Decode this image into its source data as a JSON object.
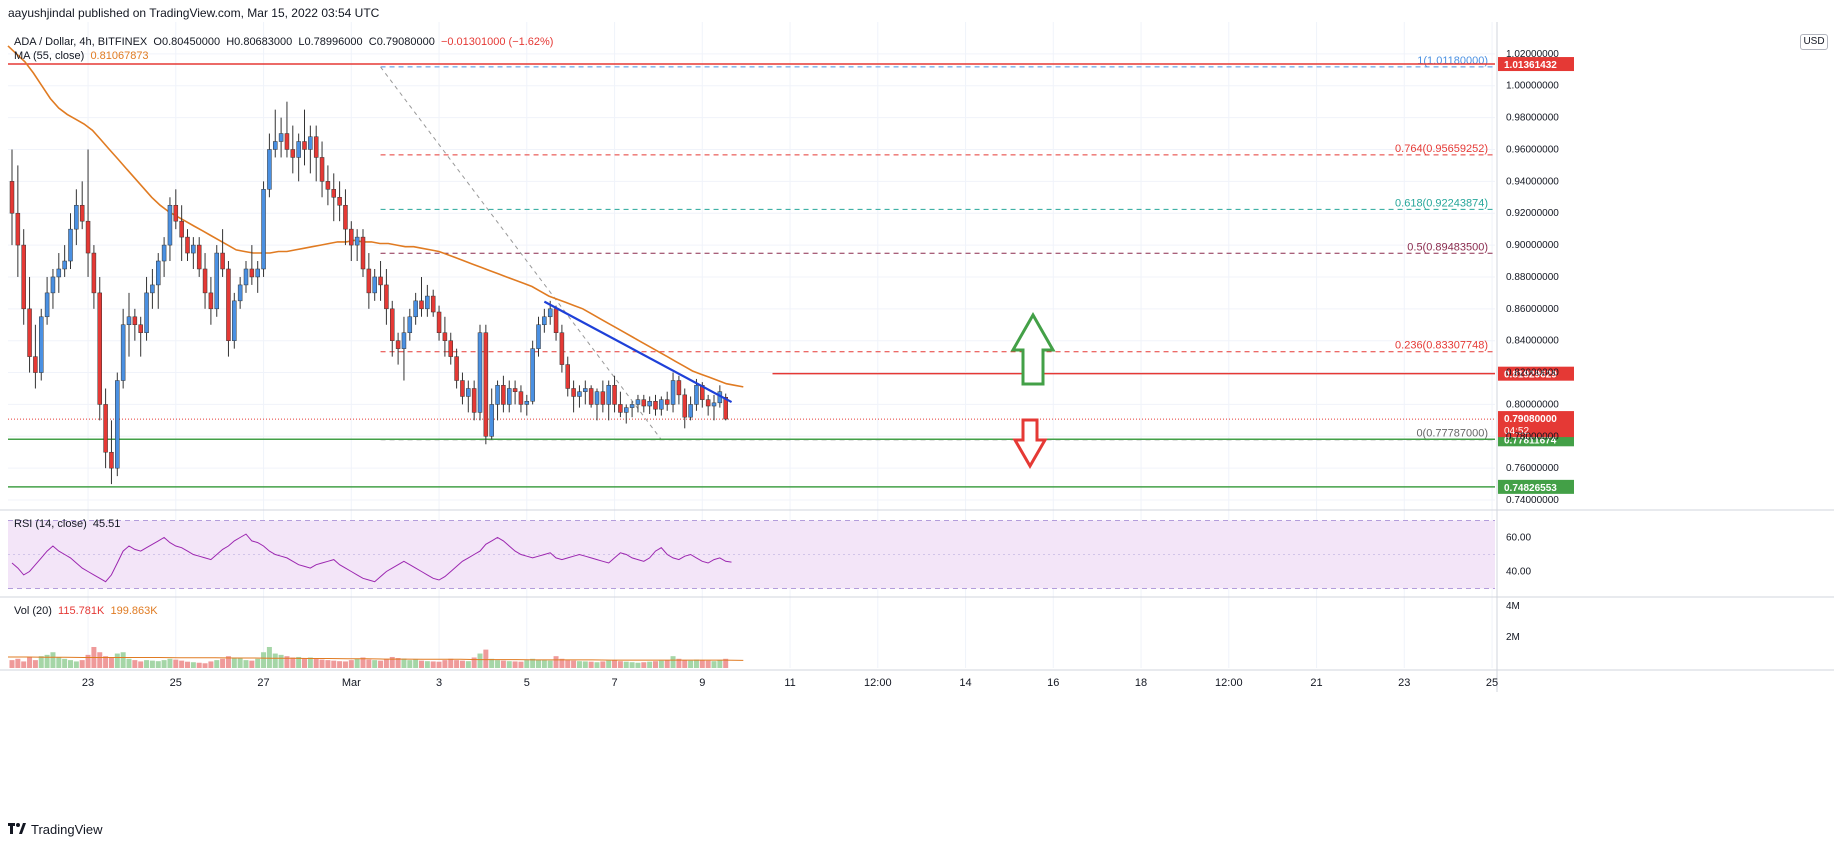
{
  "header": {
    "publish_line": "aayushjindal published on TradingView.com, Mar 15, 2022 03:54 UTC"
  },
  "legend": {
    "symbol": "ADA / Dollar, 4h, BITFINEX",
    "open": "O0.80450000",
    "high": "H0.80683000",
    "low": "L0.78996000",
    "close": "C0.79080000",
    "change": "−0.01301000 (−1.62%)",
    "ma_label": "MA (55, close)",
    "ma_value": "0.81067873",
    "rsi_label": "RSI (14, close)",
    "rsi_value": "45.51",
    "vol_label": "Vol (20)",
    "vol_value1": "115.781K",
    "vol_value2": "199.863K"
  },
  "currency_badge": "USD",
  "brand": {
    "name": "TradingView",
    "logo": "tradingview-logo-icon"
  },
  "colors": {
    "up": "#4a90e2",
    "down": "#e53935",
    "ma": "#e07b22",
    "rsi_line": "#9c27b0",
    "rsi_fill": "#f3e5f8",
    "support": "#43a047",
    "resistance": "#e53935",
    "trendline": "#1e40d8",
    "arrow_up": "#43a047",
    "arrow_down": "#e53935",
    "fib_red": "#e53935",
    "fib_teal": "#26a69a",
    "fib_brown": "#8b2c4e"
  },
  "chart_data": {
    "type": "candlestick",
    "ylim": [
      0.735,
      1.04
    ],
    "price_axis_labels": [
      "1.02000000",
      "1.00000000",
      "0.98000000",
      "0.96000000",
      "0.94000000",
      "0.92000000",
      "0.90000000",
      "0.88000000",
      "0.86000000",
      "0.84000000",
      "0.82000000",
      "0.80000000",
      "0.78000000",
      "0.76000000",
      "0.74000000"
    ],
    "price_axis_values": [
      1.02,
      1.0,
      0.98,
      0.96,
      0.94,
      0.92,
      0.9,
      0.88,
      0.86,
      0.84,
      0.82,
      0.8,
      0.78,
      0.76,
      0.74
    ],
    "x_labels": [
      "23",
      "25",
      "27",
      "Mar",
      "3",
      "5",
      "7",
      "9",
      "11",
      "12:00",
      "14",
      "16",
      "18",
      "12:00",
      "21",
      "23",
      "25"
    ],
    "x_label_slots": [
      13,
      28,
      43,
      58,
      73,
      88,
      103,
      118,
      133,
      148,
      163,
      178,
      193,
      208,
      223,
      238,
      253
    ],
    "candles": [
      [
        0.94,
        0.96,
        0.9,
        0.92
      ],
      [
        0.92,
        0.95,
        0.88,
        0.9
      ],
      [
        0.9,
        0.91,
        0.85,
        0.86
      ],
      [
        0.86,
        0.88,
        0.82,
        0.83
      ],
      [
        0.83,
        0.85,
        0.81,
        0.82
      ],
      [
        0.82,
        0.86,
        0.815,
        0.855
      ],
      [
        0.855,
        0.88,
        0.85,
        0.87
      ],
      [
        0.87,
        0.885,
        0.86,
        0.88
      ],
      [
        0.88,
        0.895,
        0.87,
        0.885
      ],
      [
        0.885,
        0.9,
        0.88,
        0.89
      ],
      [
        0.89,
        0.92,
        0.885,
        0.91
      ],
      [
        0.91,
        0.935,
        0.9,
        0.925
      ],
      [
        0.925,
        0.94,
        0.91,
        0.915
      ],
      [
        0.915,
        0.96,
        0.88,
        0.895
      ],
      [
        0.895,
        0.9,
        0.86,
        0.87
      ],
      [
        0.87,
        0.88,
        0.79,
        0.8
      ],
      [
        0.8,
        0.81,
        0.76,
        0.77
      ],
      [
        0.77,
        0.79,
        0.75,
        0.76
      ],
      [
        0.76,
        0.82,
        0.755,
        0.815
      ],
      [
        0.815,
        0.86,
        0.81,
        0.85
      ],
      [
        0.85,
        0.87,
        0.83,
        0.855
      ],
      [
        0.855,
        0.86,
        0.84,
        0.85
      ],
      [
        0.85,
        0.855,
        0.83,
        0.845
      ],
      [
        0.845,
        0.88,
        0.84,
        0.87
      ],
      [
        0.87,
        0.885,
        0.86,
        0.875
      ],
      [
        0.875,
        0.895,
        0.86,
        0.89
      ],
      [
        0.89,
        0.905,
        0.88,
        0.9
      ],
      [
        0.9,
        0.93,
        0.89,
        0.925
      ],
      [
        0.925,
        0.935,
        0.91,
        0.915
      ],
      [
        0.915,
        0.925,
        0.89,
        0.905
      ],
      [
        0.905,
        0.91,
        0.89,
        0.895
      ],
      [
        0.895,
        0.905,
        0.885,
        0.9
      ],
      [
        0.9,
        0.905,
        0.88,
        0.885
      ],
      [
        0.885,
        0.895,
        0.86,
        0.87
      ],
      [
        0.87,
        0.88,
        0.85,
        0.86
      ],
      [
        0.86,
        0.9,
        0.855,
        0.895
      ],
      [
        0.895,
        0.91,
        0.88,
        0.885
      ],
      [
        0.885,
        0.89,
        0.83,
        0.84
      ],
      [
        0.84,
        0.87,
        0.835,
        0.865
      ],
      [
        0.865,
        0.88,
        0.86,
        0.875
      ],
      [
        0.875,
        0.89,
        0.87,
        0.885
      ],
      [
        0.885,
        0.9,
        0.875,
        0.88
      ],
      [
        0.88,
        0.89,
        0.87,
        0.885
      ],
      [
        0.885,
        0.94,
        0.88,
        0.935
      ],
      [
        0.935,
        0.97,
        0.93,
        0.96
      ],
      [
        0.96,
        0.985,
        0.955,
        0.965
      ],
      [
        0.965,
        0.98,
        0.955,
        0.97
      ],
      [
        0.97,
        0.99,
        0.955,
        0.96
      ],
      [
        0.96,
        0.975,
        0.945,
        0.955
      ],
      [
        0.955,
        0.97,
        0.94,
        0.965
      ],
      [
        0.965,
        0.985,
        0.95,
        0.96
      ],
      [
        0.96,
        0.975,
        0.945,
        0.968
      ],
      [
        0.968,
        0.975,
        0.94,
        0.955
      ],
      [
        0.955,
        0.965,
        0.93,
        0.94
      ],
      [
        0.94,
        0.95,
        0.925,
        0.935
      ],
      [
        0.935,
        0.945,
        0.915,
        0.93
      ],
      [
        0.93,
        0.94,
        0.915,
        0.925
      ],
      [
        0.925,
        0.935,
        0.9,
        0.91
      ],
      [
        0.91,
        0.915,
        0.89,
        0.9
      ],
      [
        0.9,
        0.91,
        0.89,
        0.905
      ],
      [
        0.905,
        0.91,
        0.88,
        0.885
      ],
      [
        0.885,
        0.895,
        0.86,
        0.87
      ],
      [
        0.87,
        0.885,
        0.865,
        0.88
      ],
      [
        0.88,
        0.89,
        0.865,
        0.875
      ],
      [
        0.875,
        0.885,
        0.85,
        0.86
      ],
      [
        0.86,
        0.865,
        0.83,
        0.84
      ],
      [
        0.84,
        0.845,
        0.825,
        0.835
      ],
      [
        0.835,
        0.855,
        0.815,
        0.845
      ],
      [
        0.845,
        0.86,
        0.84,
        0.855
      ],
      [
        0.855,
        0.87,
        0.85,
        0.865
      ],
      [
        0.865,
        0.88,
        0.855,
        0.86
      ],
      [
        0.86,
        0.875,
        0.855,
        0.868
      ],
      [
        0.868,
        0.872,
        0.855,
        0.858
      ],
      [
        0.858,
        0.862,
        0.84,
        0.845
      ],
      [
        0.845,
        0.855,
        0.83,
        0.84
      ],
      [
        0.84,
        0.845,
        0.825,
        0.83
      ],
      [
        0.83,
        0.835,
        0.81,
        0.815
      ],
      [
        0.815,
        0.82,
        0.8,
        0.805
      ],
      [
        0.805,
        0.815,
        0.795,
        0.81
      ],
      [
        0.81,
        0.815,
        0.79,
        0.795
      ],
      [
        0.795,
        0.85,
        0.79,
        0.845
      ],
      [
        0.845,
        0.85,
        0.775,
        0.78
      ],
      [
        0.78,
        0.81,
        0.778,
        0.8
      ],
      [
        0.8,
        0.815,
        0.79,
        0.812
      ],
      [
        0.812,
        0.818,
        0.795,
        0.8
      ],
      [
        0.8,
        0.815,
        0.795,
        0.81
      ],
      [
        0.81,
        0.815,
        0.8,
        0.808
      ],
      [
        0.808,
        0.812,
        0.795,
        0.8
      ],
      [
        0.8,
        0.806,
        0.793,
        0.802
      ],
      [
        0.802,
        0.84,
        0.8,
        0.835
      ],
      [
        0.835,
        0.855,
        0.83,
        0.85
      ],
      [
        0.85,
        0.86,
        0.845,
        0.855
      ],
      [
        0.855,
        0.865,
        0.85,
        0.86
      ],
      [
        0.86,
        0.862,
        0.84,
        0.845
      ],
      [
        0.845,
        0.85,
        0.82,
        0.825
      ],
      [
        0.825,
        0.83,
        0.805,
        0.81
      ],
      [
        0.81,
        0.815,
        0.795,
        0.805
      ],
      [
        0.805,
        0.812,
        0.798,
        0.808
      ],
      [
        0.808,
        0.815,
        0.8,
        0.81
      ],
      [
        0.81,
        0.812,
        0.798,
        0.8
      ],
      [
        0.8,
        0.81,
        0.79,
        0.808
      ],
      [
        0.808,
        0.815,
        0.795,
        0.8
      ],
      [
        0.8,
        0.815,
        0.79,
        0.812
      ],
      [
        0.812,
        0.818,
        0.795,
        0.8
      ],
      [
        0.8,
        0.808,
        0.792,
        0.795
      ],
      [
        0.795,
        0.8,
        0.788,
        0.798
      ],
      [
        0.798,
        0.802,
        0.792,
        0.8
      ],
      [
        0.8,
        0.806,
        0.795,
        0.803
      ],
      [
        0.803,
        0.806,
        0.795,
        0.799
      ],
      [
        0.799,
        0.805,
        0.794,
        0.802
      ],
      [
        0.802,
        0.806,
        0.793,
        0.797
      ],
      [
        0.797,
        0.805,
        0.793,
        0.803
      ],
      [
        0.803,
        0.808,
        0.796,
        0.8
      ],
      [
        0.8,
        0.82,
        0.795,
        0.815
      ],
      [
        0.815,
        0.818,
        0.8,
        0.806
      ],
      [
        0.806,
        0.81,
        0.785,
        0.792
      ],
      [
        0.792,
        0.805,
        0.79,
        0.8
      ],
      [
        0.8,
        0.816,
        0.796,
        0.812
      ],
      [
        0.812,
        0.814,
        0.798,
        0.803
      ],
      [
        0.803,
        0.806,
        0.793,
        0.799
      ],
      [
        0.799,
        0.806,
        0.79,
        0.801
      ],
      [
        0.801,
        0.812,
        0.798,
        0.808
      ],
      [
        0.8045,
        0.8068,
        0.79,
        0.7908
      ]
    ],
    "ma_series": [
      1.025,
      1.02,
      1.015,
      1.008,
      1.0,
      0.992,
      0.986,
      0.982,
      0.979,
      0.976,
      0.972,
      0.966,
      0.96,
      0.954,
      0.948,
      0.942,
      0.936,
      0.93,
      0.925,
      0.921,
      0.918,
      0.915,
      0.912,
      0.909,
      0.906,
      0.903,
      0.9,
      0.897,
      0.896,
      0.895,
      0.895,
      0.895,
      0.896,
      0.896,
      0.897,
      0.898,
      0.899,
      0.9,
      0.901,
      0.902,
      0.902,
      0.903,
      0.902,
      0.902,
      0.901,
      0.901,
      0.9,
      0.899,
      0.899,
      0.898,
      0.897,
      0.896,
      0.894,
      0.892,
      0.89,
      0.888,
      0.886,
      0.884,
      0.882,
      0.88,
      0.878,
      0.876,
      0.874,
      0.871,
      0.868,
      0.866,
      0.864,
      0.862,
      0.86,
      0.857,
      0.854,
      0.851,
      0.848,
      0.845,
      0.842,
      0.839,
      0.836,
      0.833,
      0.83,
      0.827,
      0.824,
      0.821,
      0.819,
      0.817,
      0.815,
      0.813,
      0.812,
      0.811
    ],
    "volume": [
      30,
      35,
      25,
      40,
      30,
      45,
      50,
      60,
      40,
      35,
      30,
      25,
      30,
      50,
      80,
      60,
      45,
      40,
      55,
      60,
      35,
      30,
      25,
      30,
      28,
      26,
      30,
      35,
      32,
      28,
      24,
      22,
      20,
      18,
      25,
      30,
      35,
      45,
      40,
      38,
      30,
      28,
      35,
      60,
      80,
      55,
      50,
      45,
      40,
      42,
      38,
      40,
      35,
      32,
      30,
      28,
      26,
      25,
      30,
      35,
      40,
      32,
      30,
      28,
      35,
      42,
      38,
      36,
      30,
      32,
      28,
      26,
      25,
      24,
      30,
      35,
      30,
      28,
      26,
      40,
      55,
      70,
      35,
      30,
      28,
      26,
      25,
      24,
      30,
      35,
      32,
      30,
      28,
      45,
      35,
      30,
      28,
      26,
      25,
      24,
      22,
      25,
      28,
      30,
      26,
      24,
      22,
      20,
      22,
      24,
      26,
      28,
      30,
      45,
      35,
      30,
      28,
      32,
      30,
      28,
      26,
      30,
      35
    ],
    "vol_ma": [
      42,
      42,
      41,
      41,
      40,
      40,
      40,
      40,
      40,
      39,
      39,
      39,
      38,
      38,
      37,
      37,
      36,
      36,
      35,
      35,
      34,
      34,
      33,
      33,
      33,
      32,
      32,
      32,
      31,
      31,
      31,
      31,
      30,
      30,
      30,
      30,
      30,
      30,
      30,
      29
    ],
    "rsi": [
      45,
      42,
      38,
      40,
      44,
      48,
      52,
      55,
      52,
      50,
      48,
      45,
      42,
      40,
      38,
      36,
      34,
      38,
      45,
      52,
      55,
      53,
      52,
      54,
      56,
      58,
      60,
      57,
      55,
      54,
      52,
      50,
      49,
      48,
      47,
      50,
      53,
      55,
      58,
      60,
      62,
      58,
      57,
      55,
      52,
      50,
      49,
      48,
      46,
      44,
      43,
      42,
      44,
      45,
      46,
      47,
      44,
      42,
      40,
      38,
      36,
      35,
      34,
      37,
      40,
      42,
      44,
      46,
      44,
      42,
      40,
      38,
      36,
      35,
      37,
      40,
      43,
      46,
      48,
      50,
      52,
      56,
      58,
      60,
      58,
      55,
      52,
      50,
      49,
      48,
      49,
      50,
      51,
      48,
      47,
      48,
      49,
      50,
      49,
      48,
      47,
      46,
      45,
      48,
      51,
      50,
      48,
      47,
      46,
      48,
      52,
      54,
      50,
      48,
      47,
      49,
      50,
      48,
      46,
      45,
      47,
      48,
      46,
      45.5
    ],
    "rsi_ticks": [
      "60.00",
      "40.00"
    ],
    "rsi_tick_values": [
      60,
      40
    ],
    "vol_ticks": [
      "4M",
      "2M"
    ],
    "vol_tick_values": [
      4000000,
      2000000
    ],
    "fib_levels": [
      {
        "ratio": "1",
        "value": 1.0118,
        "label": "1(1.01180000)"
      },
      {
        "ratio": "0.764",
        "value": 0.95659252,
        "label": "0.764(0.95659252)"
      },
      {
        "ratio": "0.618",
        "value": 0.92243874,
        "label": "0.618(0.92243874)"
      },
      {
        "ratio": "0.5",
        "value": 0.894835,
        "label": "0.5(0.89483500)"
      },
      {
        "ratio": "0.236",
        "value": 0.83307748,
        "label": "0.236(0.83307748)"
      },
      {
        "ratio": "0",
        "value": 0.77787,
        "label": "0(0.77787000)"
      }
    ],
    "horizontal_lines": [
      {
        "value": 1.01361432,
        "label": "1.01361432",
        "kind": "resistance"
      },
      {
        "value": 0.81929629,
        "label": "0.81929629",
        "kind": "resistance"
      },
      {
        "value": 0.77811674,
        "label": "0.77811674",
        "kind": "support"
      },
      {
        "value": 0.74826553,
        "label": "0.74826553",
        "kind": "support"
      }
    ],
    "current_price": {
      "value": 0.7908,
      "label": "0.79080000",
      "countdown": "04:52"
    },
    "trendline": {
      "from": {
        "slot": 91,
        "price": 0.8645
      },
      "to": {
        "slot": 123,
        "price": 0.8015
      }
    }
  }
}
